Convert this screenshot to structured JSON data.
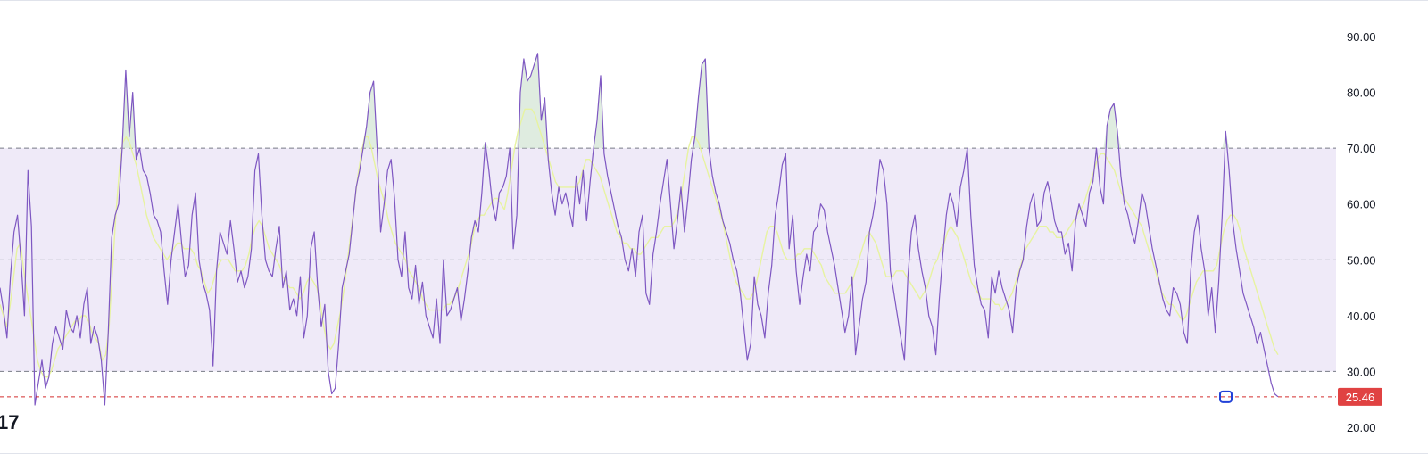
{
  "chart_data": {
    "type": "line",
    "title": "",
    "ylim": [
      17,
      97
    ],
    "y_ticks": [
      "90.00",
      "80.00",
      "70.00",
      "60.00",
      "50.00",
      "40.00",
      "30.00",
      "20.00"
    ],
    "band": {
      "upper": 70,
      "middle": 50,
      "lower": 30
    },
    "last_value": {
      "value": 25.46,
      "label": "25.46"
    },
    "series": [
      {
        "role": "rsi",
        "values": [
          45,
          41,
          36,
          47,
          55,
          58,
          50,
          40,
          66,
          56,
          24,
          28,
          32,
          27,
          29,
          35,
          38,
          36,
          34,
          41,
          38,
          37,
          40,
          36,
          42,
          45,
          35,
          38,
          36,
          32,
          24,
          37,
          54,
          58,
          60,
          70,
          84,
          72,
          80,
          68,
          70,
          66,
          65,
          62,
          58,
          57,
          55,
          48,
          42,
          50,
          55,
          60,
          53,
          47,
          49,
          58,
          62,
          50,
          46,
          44,
          41,
          31,
          48,
          55,
          53,
          51,
          57,
          52,
          46,
          48,
          45,
          47,
          52,
          66,
          69,
          58,
          50,
          48,
          47,
          52,
          56,
          45,
          48,
          41,
          43,
          40,
          47,
          36,
          40,
          52,
          55,
          45,
          38,
          42,
          30,
          26,
          27,
          35,
          45,
          48,
          51,
          57,
          63,
          66,
          70,
          74,
          80,
          82,
          70,
          55,
          60,
          66,
          68,
          61,
          50,
          47,
          55,
          45,
          43,
          49,
          42,
          46,
          40,
          38,
          36,
          43,
          35,
          50,
          40,
          41,
          43,
          45,
          39,
          43,
          48,
          54,
          57,
          55,
          62,
          71,
          66,
          60,
          57,
          62,
          63,
          65,
          70,
          52,
          58,
          80,
          86,
          82,
          83,
          85,
          87,
          75,
          79,
          68,
          62,
          58,
          63,
          60,
          62,
          59,
          56,
          65,
          60,
          66,
          57,
          64,
          70,
          75,
          83,
          69,
          65,
          62,
          59,
          56,
          54,
          50,
          48,
          52,
          47,
          55,
          58,
          44,
          42,
          51,
          55,
          60,
          64,
          68,
          60,
          52,
          57,
          63,
          55,
          61,
          68,
          72,
          79,
          85,
          86,
          70,
          65,
          62,
          60,
          57,
          55,
          53,
          50,
          48,
          44,
          38,
          32,
          35,
          47,
          42,
          40,
          36,
          44,
          49,
          58,
          62,
          67,
          69,
          52,
          58,
          48,
          42,
          47,
          51,
          48,
          55,
          56,
          60,
          59,
          55,
          52,
          49,
          45,
          41,
          37,
          40,
          47,
          33,
          38,
          43,
          46,
          55,
          58,
          62,
          68,
          66,
          60,
          48,
          44,
          40,
          36,
          32,
          47,
          55,
          58,
          52,
          48,
          45,
          40,
          38,
          33,
          43,
          51,
          58,
          62,
          60,
          56,
          63,
          66,
          70,
          58,
          49,
          45,
          42,
          41,
          36,
          47,
          44,
          48,
          45,
          43,
          41,
          37,
          45,
          48,
          50,
          56,
          60,
          62,
          56,
          57,
          62,
          64,
          61,
          57,
          55,
          55,
          51,
          53,
          48,
          57,
          60,
          58,
          56,
          62,
          64,
          70,
          63,
          60,
          74,
          77,
          78,
          73,
          65,
          60,
          58,
          55,
          53,
          57,
          62,
          60,
          56,
          52,
          49,
          46,
          43,
          41,
          40,
          45,
          44,
          42,
          37,
          35,
          48,
          55,
          58,
          52,
          48,
          40,
          45,
          37,
          46,
          58,
          73,
          66,
          57,
          52,
          48,
          44,
          42,
          40,
          38,
          35,
          37,
          34,
          31,
          28,
          26,
          25.46
        ]
      },
      {
        "role": "moving-average",
        "values": [
          42,
          40,
          38,
          42,
          47,
          52,
          53,
          48,
          44,
          40,
          36,
          32,
          30,
          29,
          29,
          30,
          32,
          34,
          35,
          36,
          37,
          38,
          39,
          39,
          40,
          40,
          39,
          37,
          36,
          35,
          32,
          33,
          38,
          48,
          58,
          66,
          71,
          72,
          71,
          69,
          67,
          64,
          61,
          58,
          56,
          54,
          53,
          52,
          51,
          50,
          51,
          52,
          53,
          53,
          52,
          52,
          52,
          51,
          49,
          48,
          46,
          44,
          45,
          47,
          49,
          50,
          50,
          50,
          49,
          48,
          48,
          48,
          49,
          51,
          54,
          56,
          57,
          56,
          54,
          52,
          51,
          50,
          49,
          47,
          46,
          45,
          45,
          44,
          43,
          44,
          46,
          47,
          46,
          45,
          42,
          38,
          35,
          34,
          35,
          38,
          41,
          45,
          50,
          55,
          60,
          65,
          69,
          72,
          72,
          70,
          67,
          64,
          62,
          60,
          57,
          55,
          53,
          52,
          51,
          50,
          48,
          47,
          46,
          45,
          43,
          42,
          41,
          41,
          41,
          41,
          41,
          42,
          42,
          43,
          44,
          46,
          48,
          50,
          52,
          55,
          57,
          58,
          58,
          59,
          60,
          61,
          61,
          60,
          59,
          62,
          66,
          70,
          73,
          75,
          77,
          77,
          77,
          76,
          74,
          72,
          70,
          68,
          66,
          64,
          63,
          63,
          63,
          63,
          63,
          63,
          64,
          66,
          68,
          68,
          67,
          66,
          65,
          63,
          61,
          59,
          57,
          55,
          54,
          53,
          53,
          52,
          52,
          51,
          51,
          52,
          53,
          54,
          54,
          54,
          55,
          56,
          56,
          56,
          57,
          59,
          62,
          66,
          70,
          72,
          72,
          71,
          69,
          67,
          65,
          63,
          61,
          59,
          57,
          54,
          51,
          48,
          46,
          45,
          44,
          43,
          43,
          44,
          46,
          49,
          52,
          55,
          56,
          56,
          55,
          53,
          51,
          50,
          50,
          50,
          51,
          51,
          52,
          52,
          52,
          51,
          50,
          49,
          47,
          46,
          45,
          44,
          44,
          44,
          44,
          45,
          46,
          48,
          50,
          52,
          54,
          55,
          54,
          53,
          51,
          49,
          47,
          47,
          47,
          48,
          48,
          48,
          47,
          46,
          45,
          44,
          43,
          44,
          45,
          47,
          49,
          50,
          52,
          53,
          55,
          56,
          55,
          54,
          52,
          50,
          48,
          46,
          45,
          44,
          43,
          43,
          43,
          43,
          42,
          42,
          41,
          42,
          43,
          44,
          46,
          48,
          50,
          52,
          53,
          54,
          55,
          56,
          56,
          56,
          55,
          55,
          54,
          54,
          54,
          55,
          56,
          57,
          58,
          59,
          60,
          62,
          64,
          66,
          68,
          69,
          69,
          68,
          67,
          66,
          64,
          62,
          61,
          60,
          59,
          58,
          57,
          56,
          54,
          52,
          50,
          48,
          46,
          44,
          43,
          42,
          42,
          41,
          40,
          39,
          40,
          42,
          44,
          46,
          47,
          48,
          48,
          48,
          48,
          49,
          52,
          55,
          57,
          58,
          58,
          57,
          55,
          52,
          50,
          48,
          46,
          44,
          42,
          40,
          38,
          36,
          34,
          33
        ]
      }
    ]
  },
  "style": {
    "rsi_color": "#7e57c2",
    "ma_color": "#e7f3a0",
    "band_fill": "#efeaf8",
    "band_line_color": "#787b86",
    "overbought_fill": "#c4dcc6",
    "current_line_color": "#d32f2f",
    "tag_color": "#e04242",
    "marker_color": "#2141d8"
  },
  "logo_text": "17"
}
